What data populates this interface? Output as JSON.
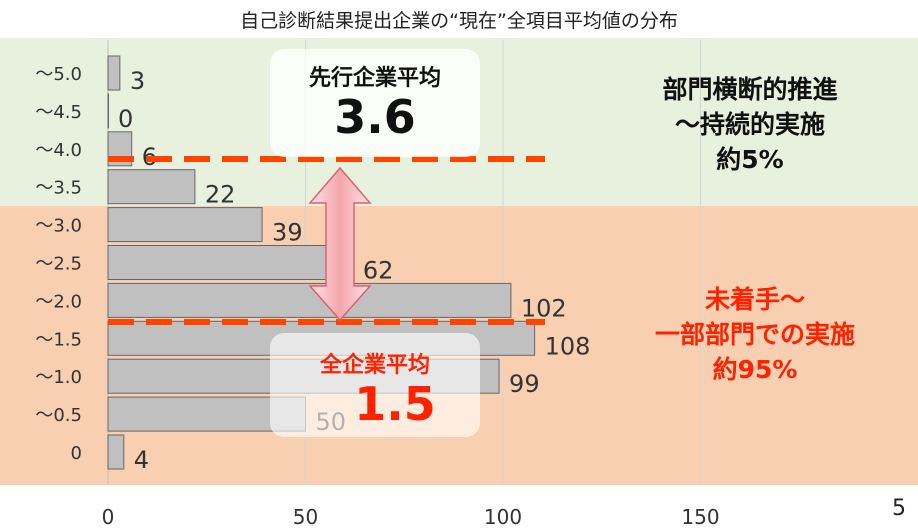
{
  "chart_data": {
    "type": "bar",
    "orientation": "horizontal",
    "title": "自己診断結果提出企業の“現在”全項目平均値の分布",
    "categories": [
      "～5.0",
      "～4.5",
      "～4.0",
      "～3.5",
      "～3.0",
      "～2.5",
      "～2.0",
      "～1.5",
      "～1.0",
      "～0.5",
      "0"
    ],
    "values": [
      3,
      0,
      6,
      22,
      39,
      62,
      102,
      108,
      99,
      50,
      4
    ],
    "xticks": [
      "0",
      "50",
      "100",
      "150"
    ],
    "xlim": [
      0,
      200
    ],
    "bar_color": "#c0c0c0",
    "band_colors": {
      "upper": "#e8f0de",
      "lower": "#f9cfb1"
    },
    "reference_lines": [
      {
        "value": 3.6,
        "color": "#ff4400"
      },
      {
        "value": 1.5,
        "color": "#ff4400"
      }
    ]
  },
  "callouts": {
    "top_box": {
      "label": "先行企業平均",
      "value": "3.6"
    },
    "bottom_box": {
      "label": "全企業平均",
      "value": "1.5"
    }
  },
  "notes": {
    "upper": [
      "部門横断的推進",
      "～持続的実施",
      "約5%"
    ],
    "lower": [
      "未着手～",
      "一部部門での実施",
      "約95%"
    ]
  },
  "page_number": "5",
  "colors": {
    "accent_red": "#ff2200",
    "arrow_pink": "#f4a6ad"
  }
}
